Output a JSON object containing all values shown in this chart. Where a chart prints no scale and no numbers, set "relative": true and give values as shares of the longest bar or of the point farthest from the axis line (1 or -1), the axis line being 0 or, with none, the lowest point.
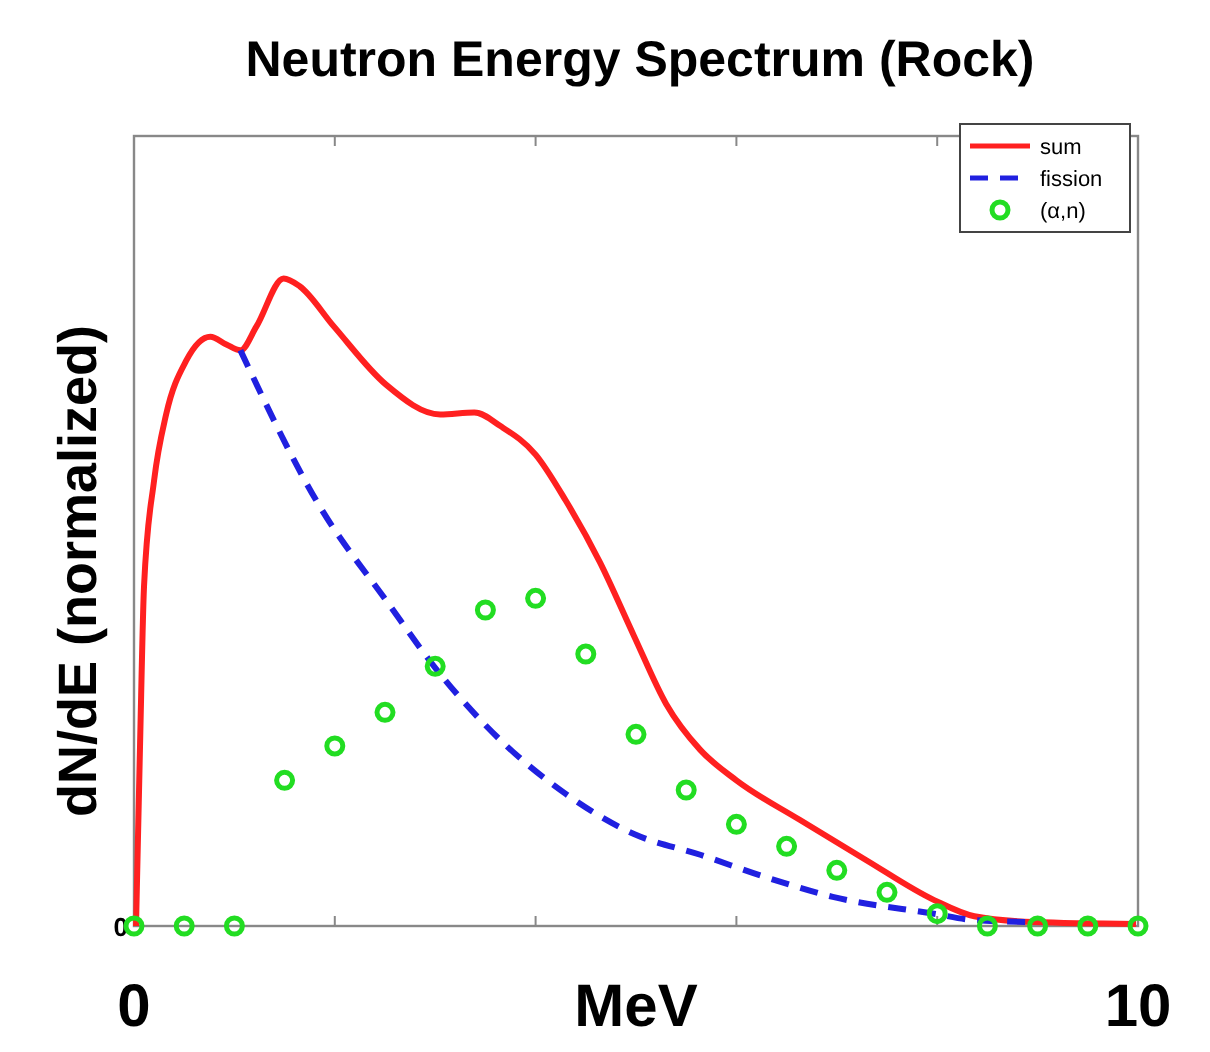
{
  "chart_data": {
    "type": "line",
    "title": "Neutron Energy Spectrum (Rock)",
    "xlabel": "MeV",
    "ylabel": "dN/dE (normalized)",
    "relative": true,
    "xlim": [
      0,
      10
    ],
    "xticks": [
      0,
      {
        "value": 2,
        "label": null
      },
      {
        "value": 4,
        "label": null
      },
      {
        "value": 6,
        "label": null
      },
      {
        "value": 8,
        "label": null
      },
      10
    ],
    "legend": "top right",
    "annotations": [
      "0"
    ],
    "series": [
      {
        "name": "sum",
        "color": "#ff2020",
        "line_style": "solid",
        "x": [
          0.02,
          0.06,
          0.1,
          0.2,
          0.32,
          0.52,
          0.76,
          0.92,
          1.06,
          1.22,
          1.49,
          1.65,
          1.99,
          2.51,
          3.05,
          3.39,
          3.65,
          4.0,
          4.3,
          4.64,
          4.98,
          5.3,
          5.64,
          6.0,
          6.63,
          7.29,
          7.97,
          8.37,
          8.96,
          9.98
        ],
        "values": [
          0,
          0.278,
          0.525,
          0.688,
          0.79,
          0.873,
          0.91,
          0.898,
          0.889,
          0.926,
          1,
          0.988,
          0.926,
          0.836,
          0.79,
          0.793,
          0.772,
          0.728,
          0.657,
          0.562,
          0.448,
          0.343,
          0.272,
          0.225,
          0.164,
          0.102,
          0.04,
          0.015,
          0.006,
          0.003
        ]
      },
      {
        "name": "fission",
        "color": "#2020e0",
        "line_style": "dashed",
        "x": [
          1.06,
          1.85,
          2.51,
          3.05,
          3.65,
          4.3,
          4.98,
          5.64,
          6.3,
          6.96,
          7.97,
          8.37,
          8.96
        ],
        "values": [
          0.889,
          0.648,
          0.503,
          0.389,
          0.287,
          0.204,
          0.142,
          0.11,
          0.075,
          0.045,
          0.019,
          0.009,
          0.006
        ]
      },
      {
        "name": "(α,n)",
        "type": "scatter",
        "color": "#22dd22",
        "marker": "circle",
        "x": [
          0,
          0.5,
          1,
          1.5,
          2,
          2.5,
          3,
          3.5,
          4,
          4.5,
          5,
          5.5,
          6,
          6.5,
          7,
          7.5,
          8,
          8.5,
          9,
          9.5,
          10
        ],
        "values": [
          0,
          0,
          0,
          0.225,
          0.278,
          0.33,
          0.401,
          0.488,
          0.506,
          0.42,
          0.296,
          0.21,
          0.157,
          0.123,
          0.086,
          0.052,
          0.019,
          0,
          0,
          0,
          0
        ]
      }
    ]
  }
}
